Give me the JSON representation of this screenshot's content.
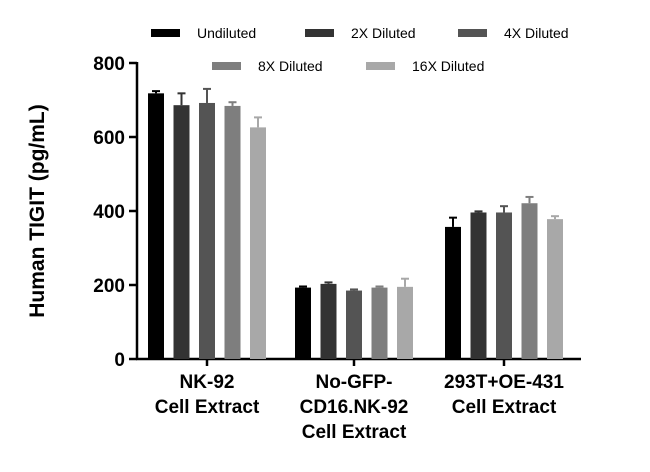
{
  "chart_data": {
    "type": "bar",
    "ylabel": "Human TIGIT (pg/mL)",
    "xlabel": "",
    "ylim": [
      0,
      800
    ],
    "yticks": [
      0,
      200,
      400,
      600,
      800
    ],
    "grid": false,
    "legend_position": "top",
    "categories": [
      [
        "NK-92",
        "Cell Extract"
      ],
      [
        "No-GFP-",
        "CD16.NK-92",
        "Cell Extract"
      ],
      [
        "293T+OE-431",
        "Cell Extract"
      ]
    ],
    "series": [
      {
        "name": "Undiluted",
        "color": "#000000",
        "values": [
          718,
          193,
          357
        ],
        "errors": [
          6,
          3,
          25
        ]
      },
      {
        "name": "2X Diluted",
        "color": "#333333",
        "values": [
          686,
          203,
          396
        ],
        "errors": [
          32,
          4,
          3
        ]
      },
      {
        "name": "4X Diluted",
        "color": "#545454",
        "values": [
          692,
          185,
          396
        ],
        "errors": [
          38,
          3,
          17
        ]
      },
      {
        "name": "8X Diluted",
        "color": "#7e7e7e",
        "values": [
          684,
          193,
          421
        ],
        "errors": [
          10,
          3,
          17
        ]
      },
      {
        "name": "16X Diluted",
        "color": "#a8a8a8",
        "values": [
          626,
          195,
          378
        ],
        "errors": [
          27,
          22,
          8
        ]
      }
    ]
  }
}
